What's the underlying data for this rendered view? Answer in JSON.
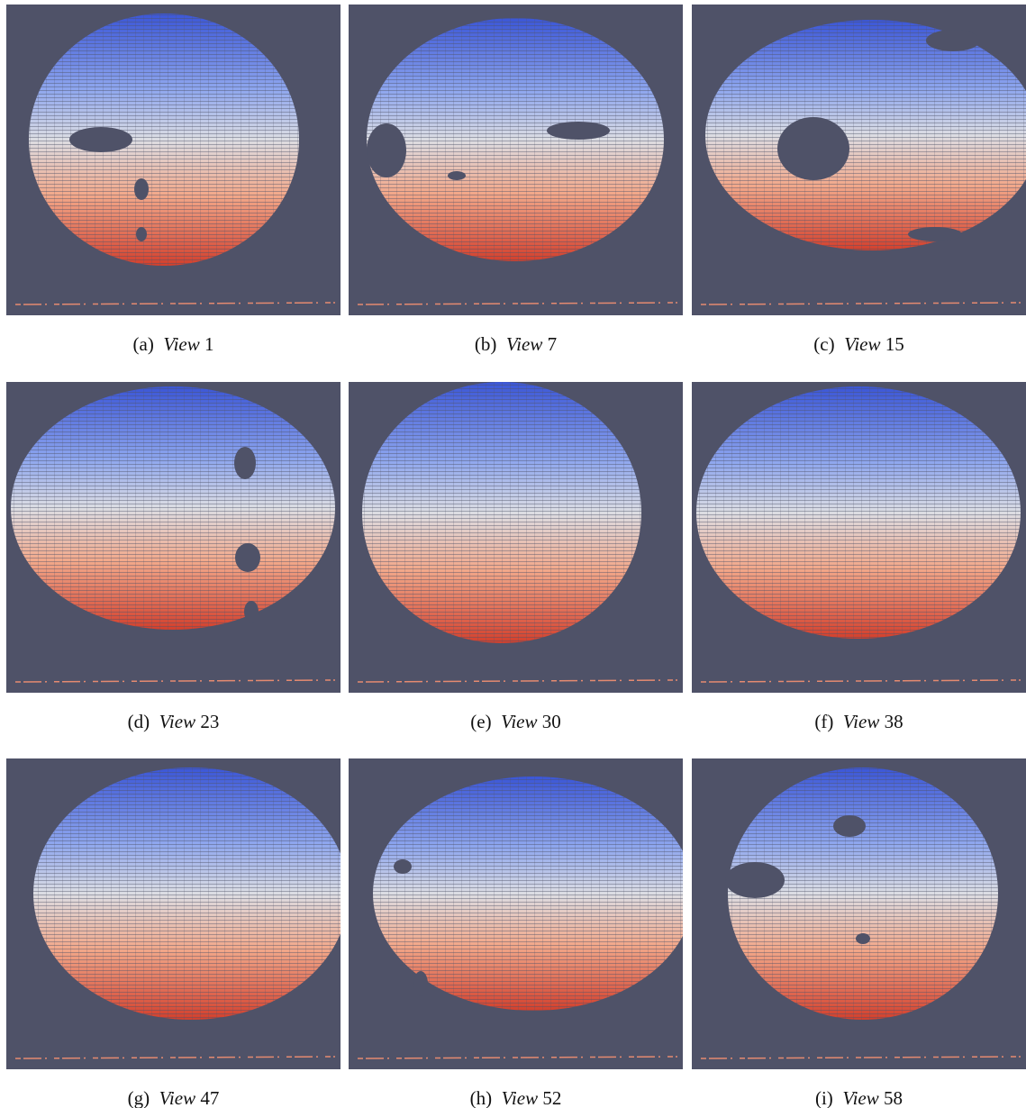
{
  "figure": {
    "panels": [
      {
        "label": "(a)",
        "view": "View",
        "number": "1"
      },
      {
        "label": "(b)",
        "view": "View",
        "number": "7"
      },
      {
        "label": "(c)",
        "view": "View",
        "number": "15"
      },
      {
        "label": "(d)",
        "view": "View",
        "number": "23"
      },
      {
        "label": "(e)",
        "view": "View",
        "number": "30"
      },
      {
        "label": "(f)",
        "view": "View",
        "number": "38"
      },
      {
        "label": "(g)",
        "view": "View",
        "number": "47"
      },
      {
        "label": "(h)",
        "view": "View",
        "number": "52"
      },
      {
        "label": "(i)",
        "view": "View",
        "number": "58"
      }
    ]
  }
}
